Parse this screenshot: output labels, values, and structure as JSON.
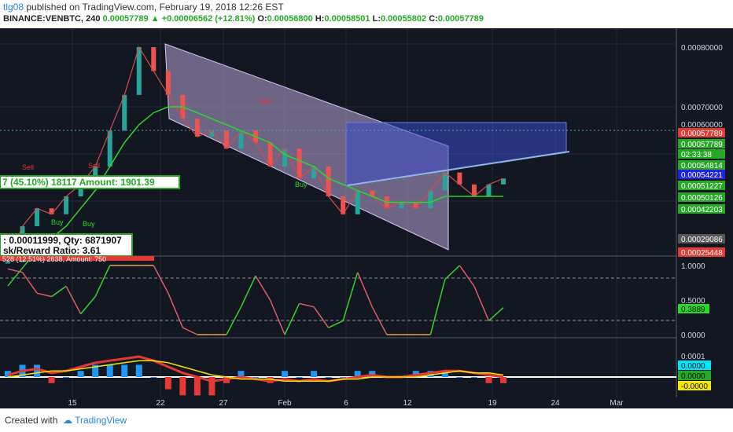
{
  "header": {
    "author": "tlg08",
    "published_text": "published on TradingView.com, February 19, 2018 12:26 EST",
    "symbol": "BINANCE:VENBTC, 240",
    "last": "0.00057789",
    "change": "+0.00006562 (+12.81%)",
    "o_label": "O:",
    "o_val": "0.00056800",
    "h_label": "H:",
    "h_val": "0.00058501",
    "l_label": "L:",
    "l_val": "0.00055802",
    "c_label": "C:",
    "c_val": "0.00057789"
  },
  "footer": {
    "created": "Created with",
    "brand": "TradingView"
  },
  "chart_data": [
    {
      "type": "line",
      "name_hint": "price",
      "yticks": [
        "0.00080000",
        "0.00070000",
        "0.00060000"
      ],
      "price_labels": [
        {
          "text": "0.00057789",
          "color": "#e53935"
        },
        {
          "text": "0.00057789",
          "color": "#26a826"
        },
        {
          "text": "02:33:38",
          "color": "#26a826"
        },
        {
          "text": "0.00054814",
          "color": "#26a826"
        },
        {
          "text": "0.00054221",
          "color": "#1e22e5"
        },
        {
          "text": "0.00051227",
          "color": "#26a826"
        },
        {
          "text": "0.00050126",
          "color": "#26a826"
        },
        {
          "text": "0.00042203",
          "color": "#26a826"
        },
        {
          "text": "0.00029086",
          "color": "#555555"
        },
        {
          "text": "0.00025448",
          "color": "#e53935"
        }
      ],
      "annotations": {
        "buy": "Buy",
        "sell": "Sell",
        "box_amount": "7 (45.10%) 18117  Amount: 1901.39",
        "box_qty": ": 0.00011999, Qty: 6871907",
        "box_rr": "sk/Reward Ratio: 3.61",
        "box_red": "528 (12.51%) 2638, Amount: 750"
      },
      "close": [
        0.00044,
        0.0005,
        0.00053,
        0.00052,
        0.00055,
        0.00057,
        0.0006,
        0.00066,
        0.00072,
        0.0008,
        0.00076,
        0.00072,
        0.00068,
        0.00065,
        0.00066,
        0.00063,
        0.00066,
        0.00064,
        0.0006,
        0.00063,
        0.00058,
        0.0006,
        0.00055,
        0.00052,
        0.00056,
        0.00055,
        0.00053,
        0.00054,
        0.00053,
        0.00056,
        0.00059,
        0.00057,
        0.00055,
        0.00057,
        0.00058
      ],
      "ma": [
        0.0004,
        0.00043,
        0.00046,
        0.00048,
        0.0005,
        0.00053,
        0.00056,
        0.0006,
        0.00064,
        0.00067,
        0.00069,
        0.0007,
        0.0007,
        0.00069,
        0.00068,
        0.00067,
        0.00066,
        0.00065,
        0.00064,
        0.00062,
        0.00061,
        0.0006,
        0.00058,
        0.00057,
        0.00056,
        0.00055,
        0.00054,
        0.00054,
        0.00054,
        0.00054,
        0.00055,
        0.00055,
        0.00055,
        0.00055,
        0.00055
      ]
    },
    {
      "type": "line",
      "name_hint": "oscillator",
      "yticks": [
        "1.0000",
        "0.5000",
        "0.0000"
      ],
      "value_label": "0.3889",
      "values": [
        0.95,
        0.9,
        0.6,
        0.55,
        0.7,
        0.3,
        0.55,
        1.0,
        1.0,
        1.0,
        1.0,
        0.6,
        0.1,
        0.0,
        0.0,
        0.0,
        0.4,
        0.85,
        0.5,
        0.0,
        0.45,
        0.4,
        0.1,
        0.2,
        0.9,
        0.4,
        0.0,
        0.0,
        0.0,
        0.0,
        0.8,
        1.0,
        0.7,
        0.2,
        0.39
      ]
    },
    {
      "type": "line",
      "name_hint": "macd",
      "yticks": [
        "0.0001"
      ],
      "value_labels": [
        {
          "text": "0.0000",
          "color": "#00e5ff"
        },
        {
          "text": "0.0000",
          "color": "#26a826"
        },
        {
          "text": "-0.0000",
          "color": "#f5e500"
        }
      ],
      "macd": [
        1e-05,
        3e-05,
        4e-05,
        2e-05,
        3e-05,
        5e-05,
        7e-05,
        8e-05,
        9e-05,
        0.0001,
        8e-05,
        5e-05,
        2e-05,
        0.0,
        -2e-05,
        -1e-05,
        0.0,
        -1e-05,
        -2e-05,
        -1e-05,
        -2e-05,
        -1e-05,
        -2e-05,
        -1e-05,
        0.0,
        1e-05,
        0.0,
        0.0,
        1e-05,
        2e-05,
        3e-05,
        3e-05,
        2e-05,
        1e-05,
        0.0
      ],
      "signal": [
        0.0,
        1e-05,
        2e-05,
        3e-05,
        3e-05,
        4e-05,
        5e-05,
        6e-05,
        7e-05,
        8e-05,
        8e-05,
        7e-05,
        5e-05,
        3e-05,
        1e-05,
        0.0,
        -1e-05,
        -1e-05,
        -1e-05,
        -2e-05,
        -2e-05,
        -2e-05,
        -2e-05,
        -1e-05,
        -1e-05,
        0.0,
        0.0,
        0.0,
        0.0,
        1e-05,
        2e-05,
        3e-05,
        2e-05,
        2e-05,
        1e-05
      ]
    }
  ],
  "xaxis": {
    "ticks": [
      "15",
      "22",
      "27",
      "Feb",
      "6",
      "12",
      "19",
      "24",
      "Mar"
    ]
  }
}
